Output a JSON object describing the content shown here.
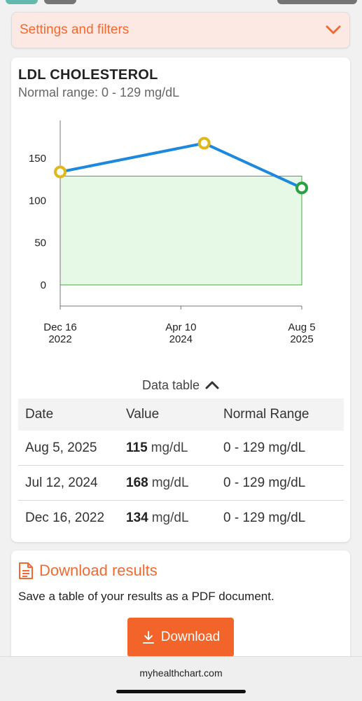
{
  "settings": {
    "label": "Settings and filters"
  },
  "test": {
    "title": "LDL CHOLESTEROL",
    "normal_range": "Normal range: 0 - 129 mg/dL"
  },
  "chart_data": {
    "type": "line",
    "x": [
      "2022-12-16",
      "2024-07-12",
      "2025-08-05"
    ],
    "values": [
      134,
      168,
      115
    ],
    "x_tick_labels": [
      {
        "date": "2022-12-16",
        "line1": "Dec 16",
        "line2": "2022"
      },
      {
        "date": "2024-04-10",
        "line1": "Apr 10",
        "line2": "2024"
      },
      {
        "date": "2025-08-05",
        "line1": "Aug 5",
        "line2": "2025"
      }
    ],
    "y_ticks": [
      0,
      50,
      100,
      150
    ],
    "normal_band": [
      0,
      129
    ],
    "point_status": [
      "abnormal",
      "abnormal",
      "normal"
    ],
    "ylim": [
      -25,
      195
    ],
    "colors": {
      "line": "#1c88e0",
      "band_fill": "#e6f9e6",
      "band_stroke": "#4aa84a",
      "abnormal": "#e0b81c",
      "normal": "#2aa041"
    }
  },
  "data_table": {
    "toggle_label": "Data table",
    "headers": [
      "Date",
      "Value",
      "Normal Range"
    ],
    "rows": [
      {
        "date": "Aug 5, 2025",
        "value": "115",
        "unit": "mg/dL",
        "range": "0 - 129 mg/dL"
      },
      {
        "date": "Jul 12, 2024",
        "value": "168",
        "unit": "mg/dL",
        "range": "0 - 129 mg/dL"
      },
      {
        "date": "Dec 16, 2022",
        "value": "134",
        "unit": "mg/dL",
        "range": "0 - 129 mg/dL"
      }
    ]
  },
  "download": {
    "title": "Download results",
    "description": "Save a table of your results as a PDF document.",
    "button_label": "Download"
  },
  "browser": {
    "url": "myhealthchart.com"
  },
  "colors": {
    "accent": "#f26a32",
    "settings_bg": "#fde9e4"
  }
}
